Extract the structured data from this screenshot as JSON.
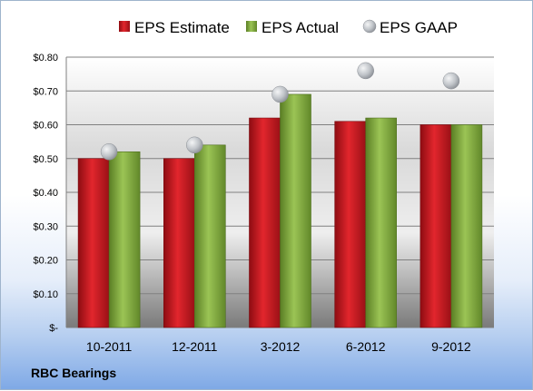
{
  "footer": {
    "company": "RBC Bearings"
  },
  "legend": [
    {
      "name": "EPS Estimate",
      "marker": "square",
      "color": "#c0141c"
    },
    {
      "name": "EPS Actual",
      "marker": "square",
      "color": "#7aa33a"
    },
    {
      "name": "EPS GAAP",
      "marker": "circle",
      "color": "#bfc3c8"
    }
  ],
  "chart_data": {
    "type": "bar",
    "categories": [
      "10-2011",
      "12-2011",
      "3-2012",
      "6-2012",
      "9-2012"
    ],
    "series": [
      {
        "name": "EPS Estimate",
        "type": "bar",
        "color": "#c0141c",
        "values": [
          0.5,
          0.5,
          0.62,
          0.61,
          0.6
        ]
      },
      {
        "name": "EPS Actual",
        "type": "bar",
        "color": "#7aa33a",
        "values": [
          0.52,
          0.54,
          0.69,
          0.62,
          0.6
        ]
      },
      {
        "name": "EPS GAAP",
        "type": "scatter",
        "color": "#bfc3c8",
        "values": [
          0.52,
          0.54,
          0.69,
          0.76,
          0.73
        ]
      }
    ],
    "y_ticks": [
      0,
      0.1,
      0.2,
      0.3,
      0.4,
      0.5,
      0.6,
      0.7,
      0.8
    ],
    "y_tick_labels": [
      "$-",
      "$0.10",
      "$0.20",
      "$0.30",
      "$0.40",
      "$0.50",
      "$0.60",
      "$0.70",
      "$0.80"
    ],
    "ylim": [
      0,
      0.8
    ],
    "grid": true,
    "legend_position": "top"
  }
}
